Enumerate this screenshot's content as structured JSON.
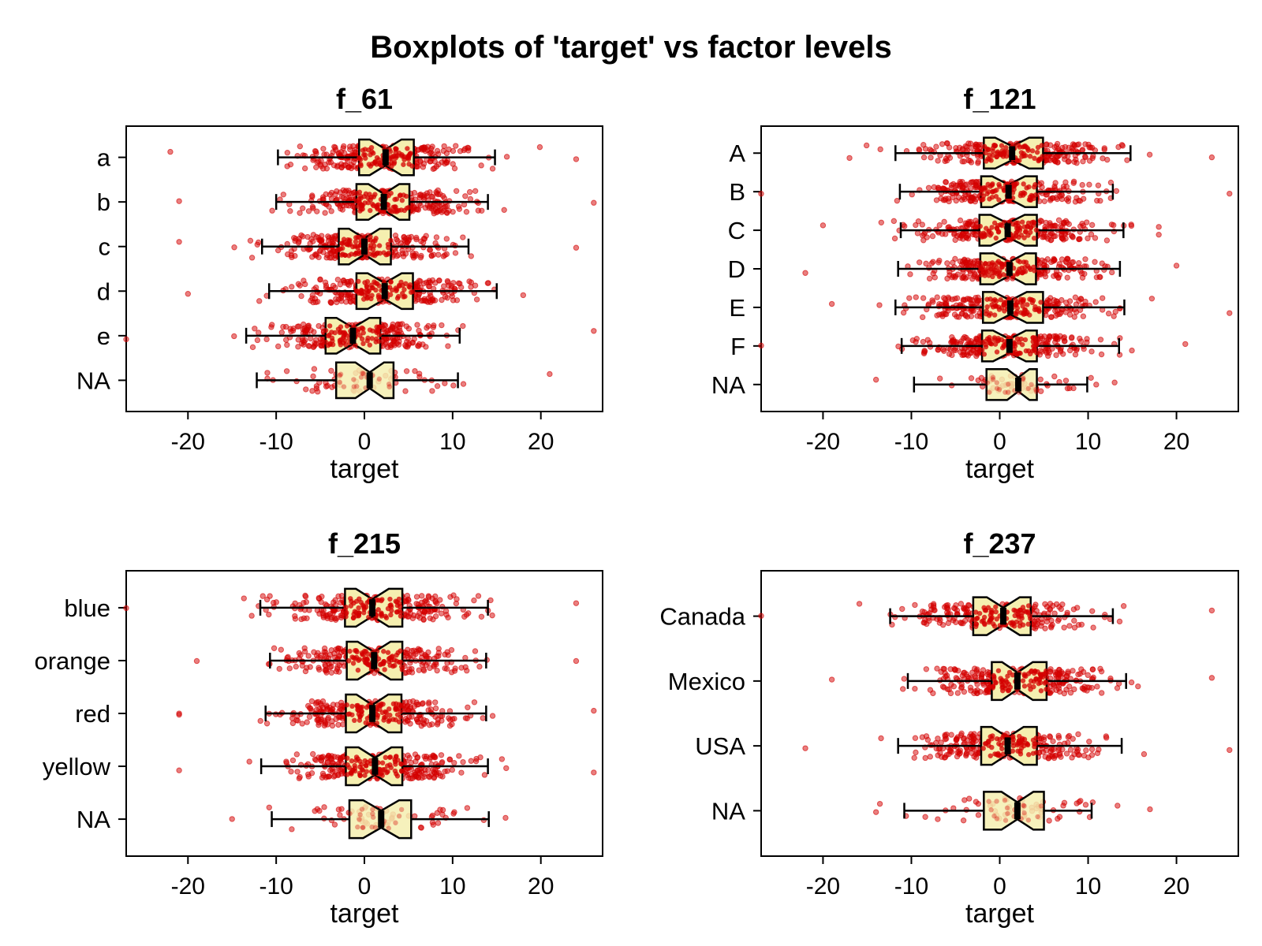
{
  "title": "Boxplots of 'target' vs factor levels",
  "colors": {
    "point": "#d40000",
    "box_fill": "#f5efb0",
    "box_stroke": "#000000"
  },
  "chart_data": [
    {
      "type": "boxplot",
      "title": "f_61",
      "xlabel": "target",
      "xlim": [
        -27,
        27
      ],
      "xticks": [
        -20,
        -10,
        0,
        10,
        20
      ],
      "orientation": "horizontal",
      "notched": true,
      "levels": [
        {
          "name": "a",
          "min": -9.8,
          "q1": -0.6,
          "median": 2.4,
          "q3": 5.6,
          "max": 14.8,
          "data_range": [
            -22,
            24
          ]
        },
        {
          "name": "b",
          "min": -10.0,
          "q1": -0.9,
          "median": 2.2,
          "q3": 5.1,
          "max": 14.0,
          "data_range": [
            -21,
            26
          ]
        },
        {
          "name": "c",
          "min": -11.6,
          "q1": -2.9,
          "median": 0.0,
          "q3": 3.0,
          "max": 11.8,
          "data_range": [
            -21,
            24
          ]
        },
        {
          "name": "d",
          "min": -10.8,
          "q1": -0.9,
          "median": 2.3,
          "q3": 5.5,
          "max": 15.0,
          "data_range": [
            -20,
            18
          ]
        },
        {
          "name": "e",
          "min": -13.4,
          "q1": -4.4,
          "median": -1.3,
          "q3": 1.8,
          "max": 10.8,
          "data_range": [
            -27,
            26
          ]
        },
        {
          "name": "NA",
          "min": -12.2,
          "q1": -3.2,
          "median": 0.6,
          "q3": 3.3,
          "max": 10.6,
          "data_range": [
            -11,
            21
          ]
        }
      ]
    },
    {
      "type": "boxplot",
      "title": "f_121",
      "xlabel": "target",
      "xlim": [
        -27,
        27
      ],
      "xticks": [
        -20,
        -10,
        0,
        10,
        20
      ],
      "orientation": "horizontal",
      "notched": true,
      "levels": [
        {
          "name": "A",
          "min": -11.8,
          "q1": -1.8,
          "median": 1.4,
          "q3": 4.9,
          "max": 14.8,
          "data_range": [
            -17,
            24
          ]
        },
        {
          "name": "B",
          "min": -11.3,
          "q1": -2.1,
          "median": 1.0,
          "q3": 4.2,
          "max": 12.8,
          "data_range": [
            -27,
            26
          ]
        },
        {
          "name": "C",
          "min": -11.2,
          "q1": -2.3,
          "median": 0.9,
          "q3": 4.2,
          "max": 14.0,
          "data_range": [
            -20,
            18
          ]
        },
        {
          "name": "D",
          "min": -11.5,
          "q1": -2.2,
          "median": 1.1,
          "q3": 4.1,
          "max": 13.6,
          "data_range": [
            -22,
            20
          ]
        },
        {
          "name": "E",
          "min": -11.8,
          "q1": -1.9,
          "median": 1.2,
          "q3": 4.9,
          "max": 14.1,
          "data_range": [
            -19,
            26
          ]
        },
        {
          "name": "F",
          "min": -11.1,
          "q1": -2.0,
          "median": 1.1,
          "q3": 4.2,
          "max": 13.5,
          "data_range": [
            -27,
            21
          ]
        },
        {
          "name": "NA",
          "min": -9.7,
          "q1": -1.5,
          "median": 2.1,
          "q3": 4.2,
          "max": 9.9,
          "data_range": [
            -14,
            13
          ]
        }
      ]
    },
    {
      "type": "boxplot",
      "title": "f_215",
      "xlabel": "target",
      "xlim": [
        -27,
        27
      ],
      "xticks": [
        -20,
        -10,
        0,
        10,
        20
      ],
      "orientation": "horizontal",
      "notched": true,
      "levels": [
        {
          "name": "blue",
          "min": -11.8,
          "q1": -2.2,
          "median": 0.9,
          "q3": 4.3,
          "max": 14.0,
          "data_range": [
            -27,
            24
          ]
        },
        {
          "name": "orange",
          "min": -10.7,
          "q1": -2.0,
          "median": 1.1,
          "q3": 4.3,
          "max": 13.8,
          "data_range": [
            -19,
            24
          ]
        },
        {
          "name": "red",
          "min": -11.2,
          "q1": -2.1,
          "median": 0.9,
          "q3": 4.2,
          "max": 13.8,
          "data_range": [
            -21,
            26
          ]
        },
        {
          "name": "yellow",
          "min": -11.7,
          "q1": -2.1,
          "median": 1.2,
          "q3": 4.3,
          "max": 14.0,
          "data_range": [
            -21,
            26
          ]
        },
        {
          "name": "NA",
          "min": -10.5,
          "q1": -1.7,
          "median": 1.9,
          "q3": 5.3,
          "max": 14.1,
          "data_range": [
            -15,
            16
          ]
        }
      ]
    },
    {
      "type": "boxplot",
      "title": "f_237",
      "xlabel": "target",
      "xlim": [
        -27,
        27
      ],
      "xticks": [
        -20,
        -10,
        0,
        10,
        20
      ],
      "orientation": "horizontal",
      "notched": true,
      "levels": [
        {
          "name": "Canada",
          "min": -12.4,
          "q1": -3.0,
          "median": 0.4,
          "q3": 3.5,
          "max": 12.8,
          "data_range": [
            -27,
            24
          ]
        },
        {
          "name": "Mexico",
          "min": -10.4,
          "q1": -0.9,
          "median": 2.0,
          "q3": 5.3,
          "max": 14.3,
          "data_range": [
            -19,
            24
          ]
        },
        {
          "name": "USA",
          "min": -11.5,
          "q1": -2.1,
          "median": 0.9,
          "q3": 4.2,
          "max": 13.8,
          "data_range": [
            -22,
            26
          ]
        },
        {
          "name": "NA",
          "min": -10.8,
          "q1": -1.8,
          "median": 2.0,
          "q3": 5.0,
          "max": 10.4,
          "data_range": [
            -14,
            17
          ]
        }
      ]
    }
  ]
}
